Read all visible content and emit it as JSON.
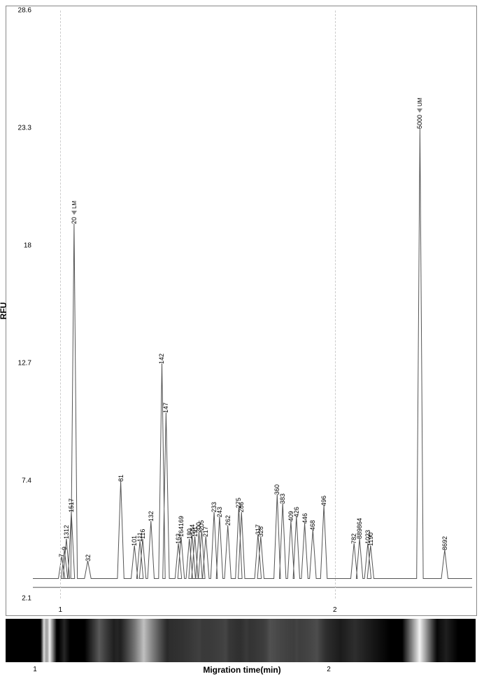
{
  "chart": {
    "y_label": "RFU",
    "y_min": 2.1,
    "y_max": 28.6,
    "y_ticks": [
      2.1,
      7.4,
      12.7,
      18.0,
      23.3,
      28.6
    ],
    "x_ticks": [
      1,
      2
    ],
    "x_min": 0.9,
    "x_max": 2.5,
    "line_color": "#555555",
    "grid_color": "#cccccc",
    "border_color": "#888888",
    "background": "#ffffff",
    "markers": [
      {
        "t": 1.05,
        "rfu": 19.0,
        "label": "20",
        "prefix": "LM"
      },
      {
        "t": 2.31,
        "rfu": 23.3,
        "label": "5000",
        "prefix": "UM"
      }
    ],
    "peaks": [
      {
        "t": 1.005,
        "rfu": 4.0,
        "label": "7"
      },
      {
        "t": 1.015,
        "rfu": 4.3,
        "label": "9"
      },
      {
        "t": 1.022,
        "rfu": 4.8,
        "label": "1312"
      },
      {
        "t": 1.04,
        "rfu": 6.0,
        "label": "1517"
      },
      {
        "t": 1.1,
        "rfu": 3.8,
        "label": "32"
      },
      {
        "t": 1.22,
        "rfu": 7.4,
        "label": "81"
      },
      {
        "t": 1.27,
        "rfu": 4.5,
        "label": "101"
      },
      {
        "t": 1.29,
        "rfu": 4.7,
        "label": "111"
      },
      {
        "t": 1.3,
        "rfu": 4.8,
        "label": "116"
      },
      {
        "t": 1.33,
        "rfu": 5.6,
        "label": "132"
      },
      {
        "t": 1.37,
        "rfu": 12.7,
        "label": "142"
      },
      {
        "t": 1.385,
        "rfu": 10.5,
        "label": "147"
      },
      {
        "t": 1.43,
        "rfu": 4.6,
        "label": "163"
      },
      {
        "t": 1.44,
        "rfu": 4.9,
        "label": "164169"
      },
      {
        "t": 1.47,
        "rfu": 4.8,
        "label": "180"
      },
      {
        "t": 1.48,
        "rfu": 5.0,
        "label": "184"
      },
      {
        "t": 1.49,
        "rfu": 4.9,
        "label": "191"
      },
      {
        "t": 1.505,
        "rfu": 5.1,
        "label": "200"
      },
      {
        "t": 1.515,
        "rfu": 5.2,
        "label": "205"
      },
      {
        "t": 1.53,
        "rfu": 4.9,
        "label": "217"
      },
      {
        "t": 1.56,
        "rfu": 6.0,
        "label": "233"
      },
      {
        "t": 1.58,
        "rfu": 5.8,
        "label": "243"
      },
      {
        "t": 1.61,
        "rfu": 5.4,
        "label": "262"
      },
      {
        "t": 1.65,
        "rfu": 6.2,
        "label": "275"
      },
      {
        "t": 1.66,
        "rfu": 6.0,
        "label": "286"
      },
      {
        "t": 1.72,
        "rfu": 5.0,
        "label": "317"
      },
      {
        "t": 1.73,
        "rfu": 4.9,
        "label": "328"
      },
      {
        "t": 1.79,
        "rfu": 6.8,
        "label": "360"
      },
      {
        "t": 1.81,
        "rfu": 6.4,
        "label": "383"
      },
      {
        "t": 1.84,
        "rfu": 5.6,
        "label": "409"
      },
      {
        "t": 1.86,
        "rfu": 5.8,
        "label": "426"
      },
      {
        "t": 1.89,
        "rfu": 5.5,
        "label": "446"
      },
      {
        "t": 1.92,
        "rfu": 5.2,
        "label": "468"
      },
      {
        "t": 1.96,
        "rfu": 6.3,
        "label": "496"
      },
      {
        "t": 2.07,
        "rfu": 4.6,
        "label": "782"
      },
      {
        "t": 2.09,
        "rfu": 4.8,
        "label": "889864"
      },
      {
        "t": 2.12,
        "rfu": 4.6,
        "label": "1023"
      },
      {
        "t": 2.13,
        "rfu": 4.5,
        "label": "1190"
      },
      {
        "t": 2.4,
        "rfu": 4.3,
        "label": "8692"
      }
    ],
    "baseline_rfu": 3.0,
    "baseline2_rfu": 2.6
  },
  "gel": {
    "axis_label": "Migration time(min)",
    "background": "#000000",
    "x_min": 0.9,
    "x_max": 2.5,
    "ticks": [
      1,
      2
    ],
    "bands": [
      {
        "t": 1.03,
        "w": 0.006,
        "intensity": 0.85
      },
      {
        "t": 1.05,
        "w": 0.012,
        "intensity": 0.95
      },
      {
        "t": 1.1,
        "w": 0.01,
        "intensity": 0.15
      },
      {
        "t": 1.22,
        "w": 0.025,
        "intensity": 0.35
      },
      {
        "t": 1.28,
        "w": 0.03,
        "intensity": 0.15
      },
      {
        "t": 1.37,
        "w": 0.04,
        "intensity": 0.75
      },
      {
        "t": 1.46,
        "w": 0.05,
        "intensity": 0.18
      },
      {
        "t": 1.56,
        "w": 0.05,
        "intensity": 0.25
      },
      {
        "t": 1.65,
        "w": 0.04,
        "intensity": 0.25
      },
      {
        "t": 1.72,
        "w": 0.03,
        "intensity": 0.15
      },
      {
        "t": 1.8,
        "w": 0.05,
        "intensity": 0.3
      },
      {
        "t": 1.89,
        "w": 0.05,
        "intensity": 0.22
      },
      {
        "t": 1.96,
        "w": 0.04,
        "intensity": 0.25
      },
      {
        "t": 2.09,
        "w": 0.06,
        "intensity": 0.18
      },
      {
        "t": 2.31,
        "w": 0.03,
        "intensity": 0.95
      },
      {
        "t": 2.4,
        "w": 0.02,
        "intensity": 0.12
      }
    ]
  }
}
